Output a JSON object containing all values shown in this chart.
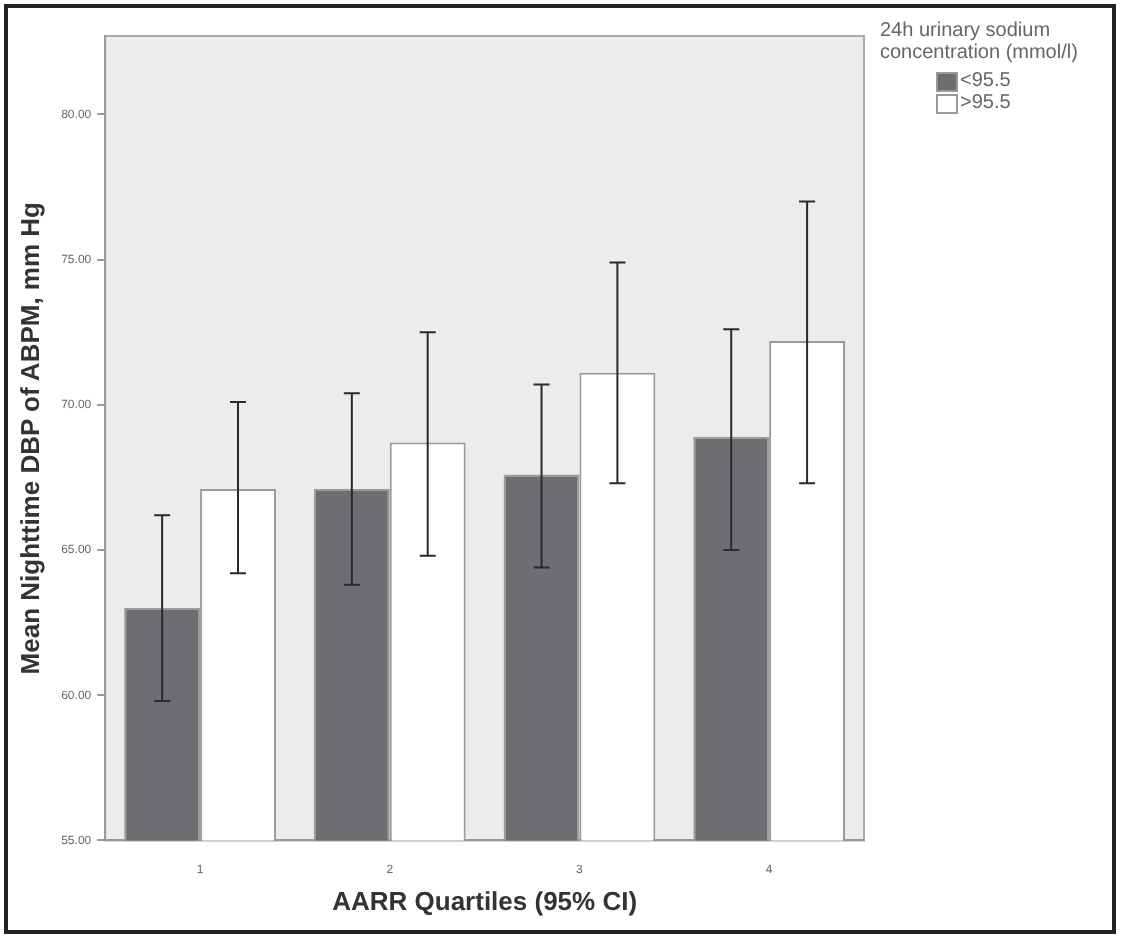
{
  "chart_data": {
    "type": "bar",
    "xlabel": "AARR Quartiles (95% CI)",
    "ylabel": "Mean Nighttime DBP of ABPM, mm Hg",
    "legend_title": "24h urinary sodium concentration (mmol/l)",
    "legend": "right",
    "grid": false,
    "categories": [
      "1",
      "2",
      "3",
      "4"
    ],
    "ylim": [
      55,
      82.7
    ],
    "yticks": [
      {
        "value": 55,
        "label": "55.00"
      },
      {
        "value": 60,
        "label": "60.00"
      },
      {
        "value": 65,
        "label": "65.00"
      },
      {
        "value": 70,
        "label": "70.00"
      },
      {
        "value": 75,
        "label": "75.00"
      },
      {
        "value": 80,
        "label": "80.00"
      }
    ],
    "series": [
      {
        "name": "<95.5",
        "color": "#6d6e71",
        "values": [
          63.0,
          67.1,
          67.6,
          68.9
        ],
        "errors": [
          [
            59.8,
            66.2
          ],
          [
            63.8,
            70.4
          ],
          [
            64.4,
            70.7
          ],
          [
            65.0,
            72.6
          ]
        ]
      },
      {
        "name": ">95.5",
        "color": "#ffffff",
        "values": [
          67.1,
          68.7,
          71.1,
          72.2
        ],
        "errors": [
          [
            64.2,
            70.1
          ],
          [
            64.8,
            72.5
          ],
          [
            67.3,
            74.9
          ],
          [
            67.3,
            77.0
          ]
        ]
      }
    ]
  }
}
